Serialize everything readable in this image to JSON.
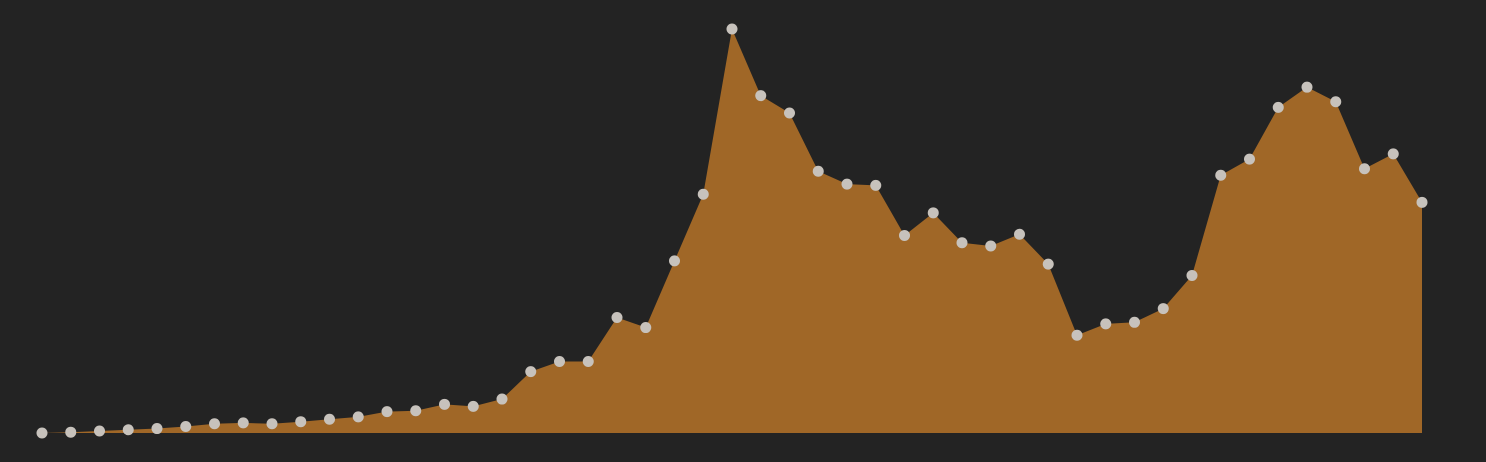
{
  "chart_data": {
    "type": "area",
    "title": "",
    "xlabel": "",
    "ylabel": "",
    "grid": false,
    "legend": "none",
    "x": [
      1,
      2,
      3,
      4,
      5,
      6,
      7,
      8,
      9,
      10,
      11,
      12,
      13,
      14,
      15,
      16,
      17,
      18,
      19,
      20,
      21,
      22,
      23,
      24,
      25,
      26,
      27,
      28,
      29,
      30,
      31,
      32,
      33,
      34,
      35,
      36,
      37,
      38,
      39,
      40,
      41,
      42,
      43,
      44,
      45,
      46,
      47,
      48,
      49
    ],
    "series": [
      {
        "values": [
          0.0,
          0.2,
          0.5,
          0.8,
          1.1,
          1.6,
          2.3,
          2.5,
          2.3,
          2.8,
          3.4,
          4.0,
          5.3,
          5.5,
          7.1,
          6.6,
          8.4,
          15.2,
          17.7,
          17.7,
          28.6,
          26.1,
          42.6,
          59.1,
          100.0,
          83.5,
          79.2,
          64.8,
          61.6,
          61.3,
          48.9,
          54.5,
          47.1,
          46.3,
          49.2,
          41.8,
          24.2,
          27.0,
          27.4,
          30.8,
          39.0,
          63.8,
          67.8,
          80.6,
          85.6,
          82.0,
          65.4,
          69.1,
          57.1
        ]
      }
    ],
    "ylim": [
      0,
      100
    ],
    "colors": {
      "background": "#232323",
      "area_fill": "#a06727",
      "marker": "#c7c2bc"
    }
  }
}
